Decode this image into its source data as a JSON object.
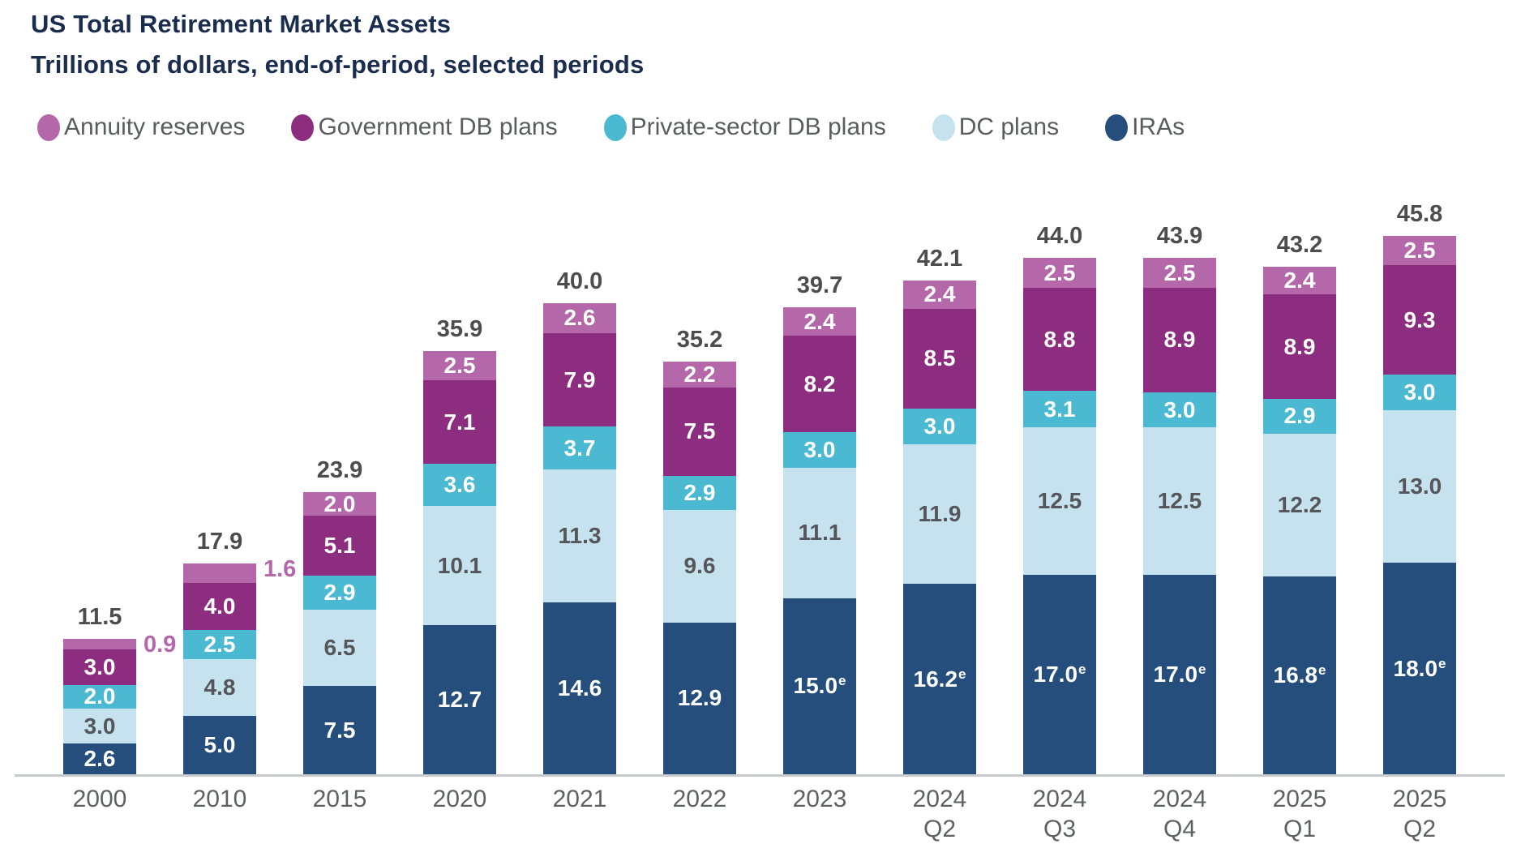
{
  "chart_data": {
    "type": "bar",
    "variant": "stacked",
    "title": "US Total Retirement Market Assets",
    "subtitle": "Trillions of dollars, end-of-period, selected periods",
    "unit": "trillions of dollars",
    "grid": false,
    "legend_position": "top",
    "estimate_note_marker": "e",
    "series_bottom_to_top": [
      "IRAs",
      "DC plans",
      "Private-sector DB plans",
      "Government DB plans",
      "Annuity reserves"
    ],
    "colors": {
      "annuity": "#b468a9",
      "government_db": "#8d2d80",
      "private_db": "#4cb9d3",
      "dc": "#c6e2ee",
      "ira": "#254e7c",
      "title_text": "#1a2d4f",
      "legend_text": "#5b5c5e",
      "tick_text": "#5f6062",
      "total_text": "#4d4d4f",
      "dc_label": "#55565a",
      "annuity_callout": "#b468a9",
      "axis_line": "#c9cacb"
    },
    "legend": [
      {
        "key": "annuity",
        "label": "Annuity reserves"
      },
      {
        "key": "government_db",
        "label": "Government DB plans"
      },
      {
        "key": "private_db",
        "label": "Private-sector DB plans"
      },
      {
        "key": "dc",
        "label": "DC plans"
      },
      {
        "key": "ira",
        "label": "IRAs"
      }
    ],
    "categories": [
      "2000",
      "2010",
      "2015",
      "2020",
      "2021",
      "2022",
      "2023",
      "2024 Q2",
      "2024 Q3",
      "2024 Q4",
      "2025 Q1",
      "2025 Q2"
    ],
    "bars": [
      {
        "id": "2000",
        "tick": "2000",
        "total": "11.5",
        "annuity_label_outside": true,
        "segments": {
          "ira": {
            "value": 2.6,
            "label": "2.6"
          },
          "dc": {
            "value": 3.0,
            "label": "3.0"
          },
          "private_db": {
            "value": 2.0,
            "label": "2.0"
          },
          "government_db": {
            "value": 3.0,
            "label": "3.0"
          },
          "annuity": {
            "value": 0.9,
            "label": "0.9"
          }
        }
      },
      {
        "id": "2010",
        "tick": "2010",
        "total": "17.9",
        "annuity_label_outside": true,
        "segments": {
          "ira": {
            "value": 5.0,
            "label": "5.0"
          },
          "dc": {
            "value": 4.8,
            "label": "4.8"
          },
          "private_db": {
            "value": 2.5,
            "label": "2.5"
          },
          "government_db": {
            "value": 4.0,
            "label": "4.0"
          },
          "annuity": {
            "value": 1.6,
            "label": "1.6"
          }
        }
      },
      {
        "id": "2015",
        "tick": "2015",
        "total": "23.9",
        "annuity_label_outside": false,
        "segments": {
          "ira": {
            "value": 7.5,
            "label": "7.5"
          },
          "dc": {
            "value": 6.5,
            "label": "6.5"
          },
          "private_db": {
            "value": 2.9,
            "label": "2.9"
          },
          "government_db": {
            "value": 5.1,
            "label": "5.1"
          },
          "annuity": {
            "value": 2.0,
            "label": "2.0"
          }
        }
      },
      {
        "id": "2020",
        "tick": "2020",
        "total": "35.9",
        "annuity_label_outside": false,
        "segments": {
          "ira": {
            "value": 12.7,
            "label": "12.7"
          },
          "dc": {
            "value": 10.1,
            "label": "10.1"
          },
          "private_db": {
            "value": 3.6,
            "label": "3.6"
          },
          "government_db": {
            "value": 7.1,
            "label": "7.1"
          },
          "annuity": {
            "value": 2.5,
            "label": "2.5"
          }
        }
      },
      {
        "id": "2021",
        "tick": "2021",
        "total": "40.0",
        "annuity_label_outside": false,
        "segments": {
          "ira": {
            "value": 14.6,
            "label": "14.6"
          },
          "dc": {
            "value": 11.3,
            "label": "11.3"
          },
          "private_db": {
            "value": 3.7,
            "label": "3.7"
          },
          "government_db": {
            "value": 7.9,
            "label": "7.9"
          },
          "annuity": {
            "value": 2.6,
            "label": "2.6"
          }
        }
      },
      {
        "id": "2022",
        "tick": "2022",
        "total": "35.2",
        "annuity_label_outside": false,
        "segments": {
          "ira": {
            "value": 12.9,
            "label": "12.9"
          },
          "dc": {
            "value": 9.6,
            "label": "9.6"
          },
          "private_db": {
            "value": 2.9,
            "label": "2.9"
          },
          "government_db": {
            "value": 7.5,
            "label": "7.5"
          },
          "annuity": {
            "value": 2.2,
            "label": "2.2"
          }
        }
      },
      {
        "id": "2023",
        "tick": "2023",
        "total": "39.7",
        "annuity_label_outside": false,
        "segments": {
          "ira": {
            "value": 15.0,
            "label": "15.0",
            "estimated": true
          },
          "dc": {
            "value": 11.1,
            "label": "11.1"
          },
          "private_db": {
            "value": 3.0,
            "label": "3.0"
          },
          "government_db": {
            "value": 8.2,
            "label": "8.2"
          },
          "annuity": {
            "value": 2.4,
            "label": "2.4"
          }
        }
      },
      {
        "id": "2024-q2",
        "tick": "2024\nQ2",
        "total": "42.1",
        "annuity_label_outside": false,
        "segments": {
          "ira": {
            "value": 16.2,
            "label": "16.2",
            "estimated": true
          },
          "dc": {
            "value": 11.9,
            "label": "11.9"
          },
          "private_db": {
            "value": 3.0,
            "label": "3.0"
          },
          "government_db": {
            "value": 8.5,
            "label": "8.5"
          },
          "annuity": {
            "value": 2.4,
            "label": "2.4"
          }
        }
      },
      {
        "id": "2024-q3",
        "tick": "2024\nQ3",
        "total": "44.0",
        "annuity_label_outside": false,
        "segments": {
          "ira": {
            "value": 17.0,
            "label": "17.0",
            "estimated": true
          },
          "dc": {
            "value": 12.5,
            "label": "12.5"
          },
          "private_db": {
            "value": 3.1,
            "label": "3.1"
          },
          "government_db": {
            "value": 8.8,
            "label": "8.8"
          },
          "annuity": {
            "value": 2.5,
            "label": "2.5"
          }
        }
      },
      {
        "id": "2024-q4",
        "tick": "2024\nQ4",
        "total": "43.9",
        "annuity_label_outside": false,
        "segments": {
          "ira": {
            "value": 17.0,
            "label": "17.0",
            "estimated": true
          },
          "dc": {
            "value": 12.5,
            "label": "12.5"
          },
          "private_db": {
            "value": 3.0,
            "label": "3.0"
          },
          "government_db": {
            "value": 8.9,
            "label": "8.9"
          },
          "annuity": {
            "value": 2.5,
            "label": "2.5"
          }
        }
      },
      {
        "id": "2025-q1",
        "tick": "2025\nQ1",
        "total": "43.2",
        "annuity_label_outside": false,
        "segments": {
          "ira": {
            "value": 16.8,
            "label": "16.8",
            "estimated": true
          },
          "dc": {
            "value": 12.2,
            "label": "12.2"
          },
          "private_db": {
            "value": 2.9,
            "label": "2.9"
          },
          "government_db": {
            "value": 8.9,
            "label": "8.9"
          },
          "annuity": {
            "value": 2.4,
            "label": "2.4"
          }
        }
      },
      {
        "id": "2025-q2",
        "tick": "2025\nQ2",
        "total": "45.8",
        "annuity_label_outside": false,
        "segments": {
          "ira": {
            "value": 18.0,
            "label": "18.0",
            "estimated": true
          },
          "dc": {
            "value": 13.0,
            "label": "13.0"
          },
          "private_db": {
            "value": 3.0,
            "label": "3.0"
          },
          "government_db": {
            "value": 9.3,
            "label": "9.3"
          },
          "annuity": {
            "value": 2.5,
            "label": "2.5"
          }
        }
      }
    ]
  }
}
